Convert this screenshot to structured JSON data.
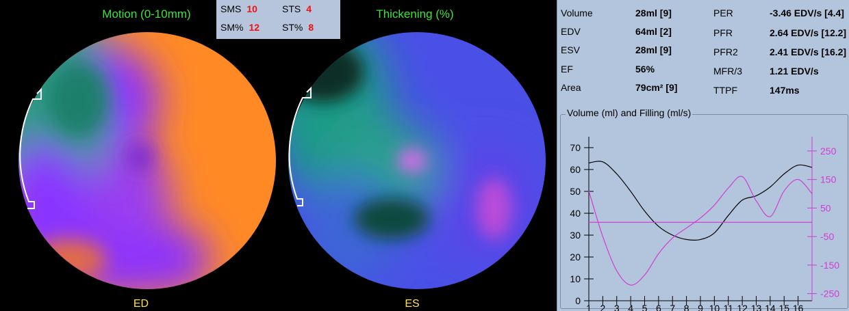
{
  "maps": {
    "motion_title": "Motion (0-10mm)",
    "thickening_title": "Thickening (%)",
    "ed_label": "ED",
    "es_label": "ES"
  },
  "scores": [
    {
      "label": "SMS",
      "value": "10"
    },
    {
      "label": "STS",
      "value": "4"
    },
    {
      "label": "SM%",
      "value": "12"
    },
    {
      "label": "ST%",
      "value": "8"
    }
  ],
  "stats_left": [
    {
      "label": "Volume",
      "value": "28ml [9]"
    },
    {
      "label": "EDV",
      "value": "64ml [2]"
    },
    {
      "label": "ESV",
      "value": "28ml [9]"
    },
    {
      "label": "EF",
      "value": "56%"
    },
    {
      "label": "Area",
      "value": "79cm² [9]"
    }
  ],
  "stats_right": [
    {
      "label": "PER",
      "value": "-3.46 EDV/s [4.4]"
    },
    {
      "label": "PFR",
      "value": "2.64 EDV/s [12.2]"
    },
    {
      "label": "PFR2",
      "value": "2.41 EDV/s [16.2]"
    },
    {
      "label": "MFR/3",
      "value": "1.21 EDV/s"
    },
    {
      "label": "TTPF",
      "value": "147ms"
    }
  ],
  "colors": {
    "volume_curve": "#000000",
    "filling_curve": "#d23cd2",
    "panel_bg": "#b3c5dc",
    "score_value": "#e11111",
    "map_title": "#3ee33a",
    "map_foot": "#ffe05a"
  },
  "chart_data": {
    "type": "line",
    "title": "Volume (ml) and Filling (ml/s)",
    "x": [
      1,
      2,
      3,
      4,
      5,
      6,
      7,
      8,
      9,
      10,
      11,
      12,
      13,
      14,
      15,
      16,
      17
    ],
    "x_tick_labels": [
      "1",
      "2",
      "3",
      "4",
      "5",
      "6",
      "7",
      "8",
      "9",
      "10",
      "11",
      "12",
      "13",
      "14",
      "15",
      "16"
    ],
    "y_left": {
      "ticks": [
        0,
        10,
        20,
        30,
        40,
        50,
        60,
        70
      ],
      "range": [
        0,
        75
      ]
    },
    "y_right": {
      "ticks": [
        250,
        150,
        50,
        -50,
        -150,
        -250
      ],
      "range": [
        -275,
        300
      ]
    },
    "series": [
      {
        "axis": "left",
        "color": "#000000",
        "values": [
          63,
          63.5,
          58,
          50,
          41,
          34,
          30,
          28,
          28,
          31,
          39,
          46,
          48,
          52,
          58,
          62,
          61
        ]
      },
      {
        "axis": "right",
        "color": "#d23cd2",
        "values": [
          110,
          -50,
          -170,
          -220,
          -185,
          -110,
          -55,
          -20,
          15,
          60,
          120,
          160,
          75,
          20,
          110,
          150,
          100
        ]
      },
      {
        "axis": "right",
        "color": "#d23cd2",
        "values": [
          0,
          0,
          0,
          0,
          0,
          0,
          0,
          0,
          0,
          0,
          0,
          0,
          0,
          0,
          0,
          0,
          0
        ]
      }
    ],
    "grid": false
  }
}
